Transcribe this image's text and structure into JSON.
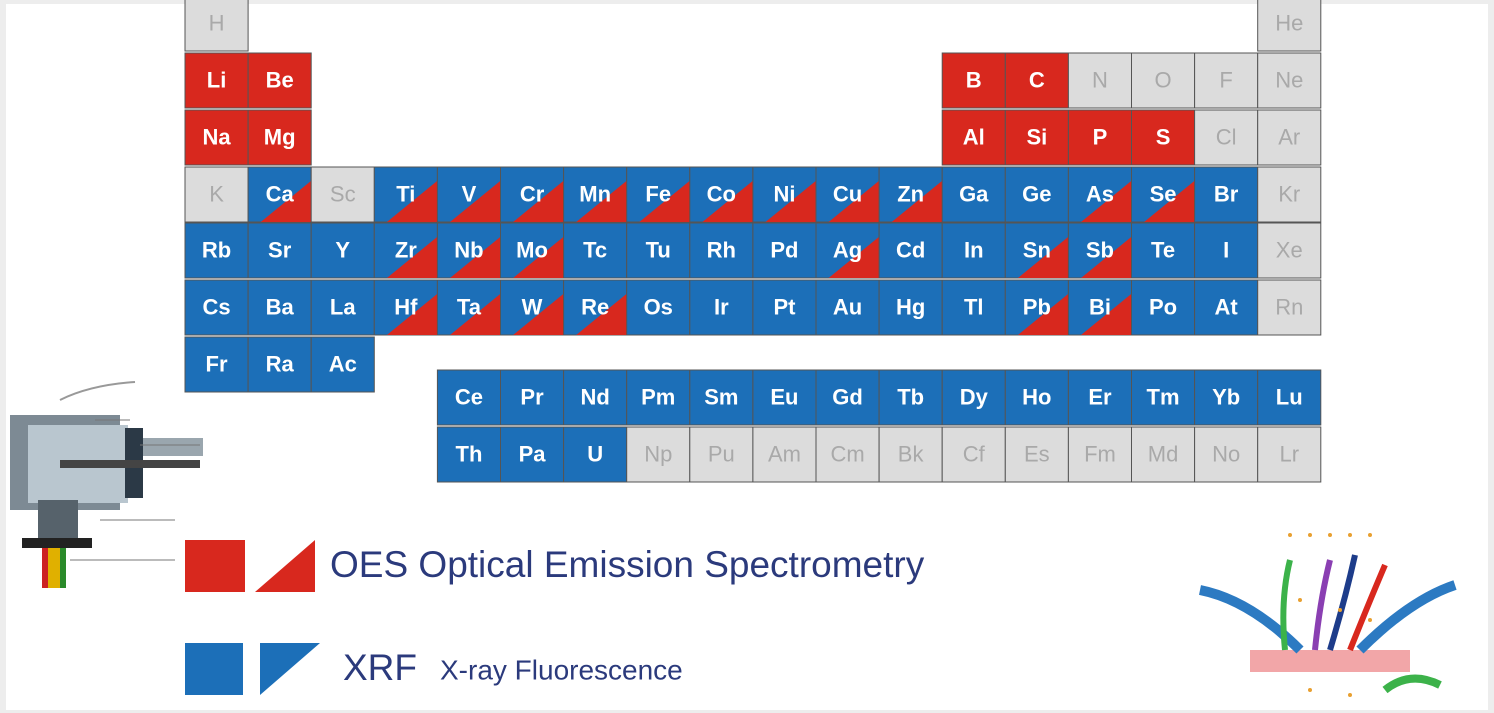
{
  "table": {
    "rows": [
      [
        {
          "symbol": "H",
          "kind": "none"
        },
        null,
        null,
        null,
        null,
        null,
        null,
        null,
        null,
        null,
        null,
        null,
        null,
        null,
        null,
        null,
        null,
        {
          "symbol": "He",
          "kind": "none"
        }
      ],
      [
        {
          "symbol": "Li",
          "kind": "oes"
        },
        {
          "symbol": "Be",
          "kind": "oes"
        },
        null,
        null,
        null,
        null,
        null,
        null,
        null,
        null,
        null,
        null,
        {
          "symbol": "B",
          "kind": "oes"
        },
        {
          "symbol": "C",
          "kind": "oes"
        },
        {
          "symbol": "N",
          "kind": "none"
        },
        {
          "symbol": "O",
          "kind": "none"
        },
        {
          "symbol": "F",
          "kind": "none"
        },
        {
          "symbol": "Ne",
          "kind": "none"
        }
      ],
      [
        {
          "symbol": "Na",
          "kind": "oes"
        },
        {
          "symbol": "Mg",
          "kind": "oes"
        },
        null,
        null,
        null,
        null,
        null,
        null,
        null,
        null,
        null,
        null,
        {
          "symbol": "Al",
          "kind": "oes"
        },
        {
          "symbol": "Si",
          "kind": "oes"
        },
        {
          "symbol": "P",
          "kind": "oes"
        },
        {
          "symbol": "S",
          "kind": "oes"
        },
        {
          "symbol": "Cl",
          "kind": "none"
        },
        {
          "symbol": "Ar",
          "kind": "none"
        }
      ],
      [
        {
          "symbol": "K",
          "kind": "none"
        },
        {
          "symbol": "Ca",
          "kind": "both"
        },
        {
          "symbol": "Sc",
          "kind": "none"
        },
        {
          "symbol": "Ti",
          "kind": "both"
        },
        {
          "symbol": "V",
          "kind": "both"
        },
        {
          "symbol": "Cr",
          "kind": "both"
        },
        {
          "symbol": "Mn",
          "kind": "both"
        },
        {
          "symbol": "Fe",
          "kind": "both"
        },
        {
          "symbol": "Co",
          "kind": "both"
        },
        {
          "symbol": "Ni",
          "kind": "both"
        },
        {
          "symbol": "Cu",
          "kind": "both"
        },
        {
          "symbol": "Zn",
          "kind": "both"
        },
        {
          "symbol": "Ga",
          "kind": "xrf"
        },
        {
          "symbol": "Ge",
          "kind": "xrf"
        },
        {
          "symbol": "As",
          "kind": "both"
        },
        {
          "symbol": "Se",
          "kind": "both"
        },
        {
          "symbol": "Br",
          "kind": "xrf"
        },
        {
          "symbol": "Kr",
          "kind": "none"
        }
      ],
      [
        {
          "symbol": "Rb",
          "kind": "xrf"
        },
        {
          "symbol": "Sr",
          "kind": "xrf"
        },
        {
          "symbol": "Y",
          "kind": "xrf"
        },
        {
          "symbol": "Zr",
          "kind": "both"
        },
        {
          "symbol": "Nb",
          "kind": "both"
        },
        {
          "symbol": "Mo",
          "kind": "both"
        },
        {
          "symbol": "Tc",
          "kind": "xrf"
        },
        {
          "symbol": "Tu",
          "kind": "xrf"
        },
        {
          "symbol": "Rh",
          "kind": "xrf"
        },
        {
          "symbol": "Pd",
          "kind": "xrf"
        },
        {
          "symbol": "Ag",
          "kind": "both"
        },
        {
          "symbol": "Cd",
          "kind": "xrf"
        },
        {
          "symbol": "In",
          "kind": "xrf"
        },
        {
          "symbol": "Sn",
          "kind": "both"
        },
        {
          "symbol": "Sb",
          "kind": "both"
        },
        {
          "symbol": "Te",
          "kind": "xrf"
        },
        {
          "symbol": "I",
          "kind": "xrf"
        },
        {
          "symbol": "Xe",
          "kind": "none"
        }
      ],
      [
        {
          "symbol": "Cs",
          "kind": "xrf"
        },
        {
          "symbol": "Ba",
          "kind": "xrf"
        },
        {
          "symbol": "La",
          "kind": "xrf"
        },
        {
          "symbol": "Hf",
          "kind": "both"
        },
        {
          "symbol": "Ta",
          "kind": "both"
        },
        {
          "symbol": "W",
          "kind": "both"
        },
        {
          "symbol": "Re",
          "kind": "both"
        },
        {
          "symbol": "Os",
          "kind": "xrf"
        },
        {
          "symbol": "Ir",
          "kind": "xrf"
        },
        {
          "symbol": "Pt",
          "kind": "xrf"
        },
        {
          "symbol": "Au",
          "kind": "xrf"
        },
        {
          "symbol": "Hg",
          "kind": "xrf"
        },
        {
          "symbol": "Tl",
          "kind": "xrf"
        },
        {
          "symbol": "Pb",
          "kind": "both"
        },
        {
          "symbol": "Bi",
          "kind": "both"
        },
        {
          "symbol": "Po",
          "kind": "xrf"
        },
        {
          "symbol": "At",
          "kind": "xrf"
        },
        {
          "symbol": "Rn",
          "kind": "none"
        }
      ],
      [
        {
          "symbol": "Fr",
          "kind": "xrf"
        },
        {
          "symbol": "Ra",
          "kind": "xrf"
        },
        {
          "symbol": "Ac",
          "kind": "xrf"
        },
        null,
        null,
        null,
        null,
        null,
        null,
        null,
        null,
        null,
        null,
        null,
        null,
        null,
        null,
        null
      ],
      [
        null,
        null,
        null,
        null,
        {
          "symbol": "Ce",
          "kind": "xrf"
        },
        {
          "symbol": "Pr",
          "kind": "xrf"
        },
        {
          "symbol": "Nd",
          "kind": "xrf"
        },
        {
          "symbol": "Pm",
          "kind": "xrf"
        },
        {
          "symbol": "Sm",
          "kind": "xrf"
        },
        {
          "symbol": "Eu",
          "kind": "xrf"
        },
        {
          "symbol": "Gd",
          "kind": "xrf"
        },
        {
          "symbol": "Tb",
          "kind": "xrf"
        },
        {
          "symbol": "Dy",
          "kind": "xrf"
        },
        {
          "symbol": "Ho",
          "kind": "xrf"
        },
        {
          "symbol": "Er",
          "kind": "xrf"
        },
        {
          "symbol": "Tm",
          "kind": "xrf"
        },
        {
          "symbol": "Yb",
          "kind": "xrf"
        },
        {
          "symbol": "Lu",
          "kind": "xrf"
        }
      ],
      [
        null,
        null,
        null,
        null,
        {
          "symbol": "Th",
          "kind": "xrf"
        },
        {
          "symbol": "Pa",
          "kind": "xrf"
        },
        {
          "symbol": "U",
          "kind": "xrf"
        },
        {
          "symbol": "Np",
          "kind": "none"
        },
        {
          "symbol": "Pu",
          "kind": "none"
        },
        {
          "symbol": "Am",
          "kind": "none"
        },
        {
          "symbol": "Cm",
          "kind": "none"
        },
        {
          "symbol": "Bk",
          "kind": "none"
        },
        {
          "symbol": "Cf",
          "kind": "none"
        },
        {
          "symbol": "Es",
          "kind": "none"
        },
        {
          "symbol": "Fm",
          "kind": "none"
        },
        {
          "symbol": "Md",
          "kind": "none"
        },
        {
          "symbol": "No",
          "kind": "none"
        },
        {
          "symbol": "Lr",
          "kind": "none"
        }
      ]
    ]
  },
  "legend": {
    "oes": {
      "label": "OES Optical Emission Spectrometry"
    },
    "xrf": {
      "abbr": "XRF",
      "label": "X-ray Fluorescence"
    }
  }
}
